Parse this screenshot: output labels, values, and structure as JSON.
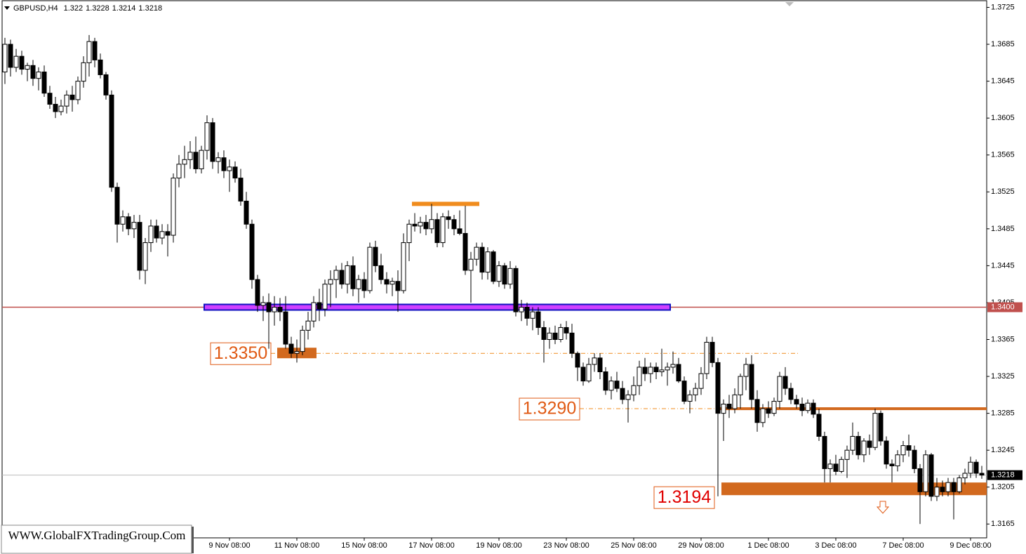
{
  "chart_data": {
    "type": "candlestick",
    "title": "GBPUSD,H4",
    "watermark": "WWW.GlobalFXTradingGroup.Com",
    "ylim": [
      1.315,
      1.3733
    ],
    "yticks": [
      1.3725,
      1.3685,
      1.3645,
      1.3605,
      1.3565,
      1.3525,
      1.3485,
      1.3445,
      1.3405,
      1.3365,
      1.3325,
      1.3285,
      1.3245,
      1.3205,
      1.3165
    ],
    "xticks": [
      {
        "value": 40,
        "label": "9 Nov 08:00"
      },
      {
        "value": 52,
        "label": "11 Nov 08:00"
      },
      {
        "value": 64,
        "label": "15 Nov 08:00"
      },
      {
        "value": 76,
        "label": "17 Nov 08:00"
      },
      {
        "value": 88,
        "label": "19 Nov 08:00"
      },
      {
        "value": 100,
        "label": "23 Nov 08:00"
      },
      {
        "value": 112,
        "label": "25 Nov 08:00"
      },
      {
        "value": 124,
        "label": "29 Nov 08:00"
      },
      {
        "value": 136,
        "label": "1 Dec 08:00"
      },
      {
        "value": 148,
        "label": "3 Dec 08:00"
      },
      {
        "value": 160,
        "label": "7 Dec 08:00"
      },
      {
        "value": 172,
        "label": "9 Dec 08:00"
      }
    ],
    "levels": {
      "resistance": {
        "value": 1.34,
        "label": "1.3400"
      },
      "level_1350": {
        "value": 1.335,
        "label": "1.3350"
      },
      "level_1290": {
        "value": 1.329,
        "label": "1.3290"
      },
      "level_1194": {
        "value": 1.3194,
        "label": "1.3194"
      },
      "top_marker": 1.3512
    },
    "ohlc": [
      [
        1.3655,
        1.3692,
        1.3642,
        1.3685
      ],
      [
        1.3685,
        1.369,
        1.365,
        1.366
      ],
      [
        1.366,
        1.368,
        1.3655,
        1.3672
      ],
      [
        1.3672,
        1.3678,
        1.3652,
        1.3658
      ],
      [
        1.3658,
        1.3665,
        1.3645,
        1.3662
      ],
      [
        1.3662,
        1.3668,
        1.364,
        1.3648
      ],
      [
        1.3648,
        1.366,
        1.3635,
        1.3655
      ],
      [
        1.3655,
        1.3662,
        1.3628,
        1.3632
      ],
      [
        1.3632,
        1.364,
        1.3615,
        1.362
      ],
      [
        1.362,
        1.3628,
        1.3605,
        1.3612
      ],
      [
        1.3612,
        1.3625,
        1.3608,
        1.3618
      ],
      [
        1.3618,
        1.3635,
        1.361,
        1.363
      ],
      [
        1.363,
        1.364,
        1.3612,
        1.3625
      ],
      [
        1.3625,
        1.365,
        1.362,
        1.3645
      ],
      [
        1.3645,
        1.3672,
        1.3638,
        1.3665
      ],
      [
        1.3665,
        1.3695,
        1.365,
        1.3688
      ],
      [
        1.3688,
        1.3692,
        1.366,
        1.3668
      ],
      [
        1.3668,
        1.3675,
        1.3648,
        1.3652
      ],
      [
        1.3652,
        1.3655,
        1.3625,
        1.363
      ],
      [
        1.363,
        1.3635,
        1.3525,
        1.353
      ],
      [
        1.353,
        1.3535,
        1.347,
        1.349
      ],
      [
        1.349,
        1.3505,
        1.3482,
        1.3498
      ],
      [
        1.3498,
        1.3502,
        1.3478,
        1.3485
      ],
      [
        1.3485,
        1.35,
        1.3475,
        1.3492
      ],
      [
        1.3492,
        1.35,
        1.343,
        1.344
      ],
      [
        1.344,
        1.3475,
        1.3425,
        1.347
      ],
      [
        1.347,
        1.3495,
        1.346,
        1.3488
      ],
      [
        1.3488,
        1.3495,
        1.347,
        1.3475
      ],
      [
        1.3475,
        1.349,
        1.3468,
        1.3482
      ],
      [
        1.3482,
        1.349,
        1.3455,
        1.3478
      ],
      [
        1.3478,
        1.3545,
        1.347,
        1.354
      ],
      [
        1.354,
        1.3565,
        1.353,
        1.3555
      ],
      [
        1.3555,
        1.3575,
        1.354,
        1.356
      ],
      [
        1.356,
        1.358,
        1.355,
        1.3568
      ],
      [
        1.3568,
        1.3585,
        1.3545,
        1.355
      ],
      [
        1.355,
        1.3575,
        1.3545,
        1.357
      ],
      [
        1.357,
        1.3608,
        1.356,
        1.36
      ],
      [
        1.36,
        1.3605,
        1.355,
        1.3558
      ],
      [
        1.3558,
        1.3568,
        1.3545,
        1.3562
      ],
      [
        1.3562,
        1.357,
        1.354,
        1.3548
      ],
      [
        1.3548,
        1.356,
        1.3525,
        1.3552
      ],
      [
        1.3552,
        1.3558,
        1.3535,
        1.354
      ],
      [
        1.354,
        1.355,
        1.351,
        1.3515
      ],
      [
        1.3515,
        1.3525,
        1.3485,
        1.349
      ],
      [
        1.349,
        1.3495,
        1.342,
        1.343
      ],
      [
        1.343,
        1.3435,
        1.3395,
        1.3402
      ],
      [
        1.3402,
        1.3412,
        1.3385,
        1.3405
      ],
      [
        1.3405,
        1.3415,
        1.3355,
        1.3395
      ],
      [
        1.3395,
        1.3412,
        1.338,
        1.34
      ],
      [
        1.34,
        1.341,
        1.3385,
        1.3395
      ],
      [
        1.3395,
        1.3412,
        1.3355,
        1.336
      ],
      [
        1.336,
        1.3368,
        1.3345,
        1.335
      ],
      [
        1.335,
        1.3365,
        1.334,
        1.3352
      ],
      [
        1.3352,
        1.338,
        1.3348,
        1.3375
      ],
      [
        1.3375,
        1.3395,
        1.3365,
        1.3385
      ],
      [
        1.3385,
        1.3412,
        1.3378,
        1.3405
      ],
      [
        1.3405,
        1.342,
        1.3385,
        1.3398
      ],
      [
        1.3398,
        1.343,
        1.339,
        1.3425
      ],
      [
        1.3425,
        1.344,
        1.34,
        1.343
      ],
      [
        1.343,
        1.3445,
        1.341,
        1.344
      ],
      [
        1.344,
        1.3448,
        1.342,
        1.3425
      ],
      [
        1.3425,
        1.345,
        1.3415,
        1.3445
      ],
      [
        1.3445,
        1.3455,
        1.3412,
        1.342
      ],
      [
        1.342,
        1.3435,
        1.3405,
        1.343
      ],
      [
        1.343,
        1.3438,
        1.341,
        1.3418
      ],
      [
        1.3418,
        1.347,
        1.3415,
        1.3465
      ],
      [
        1.3465,
        1.3472,
        1.3438,
        1.3445
      ],
      [
        1.3445,
        1.3458,
        1.3425,
        1.343
      ],
      [
        1.343,
        1.3438,
        1.3415,
        1.3425
      ],
      [
        1.3425,
        1.3432,
        1.3412,
        1.3428
      ],
      [
        1.3428,
        1.344,
        1.3395,
        1.3418
      ],
      [
        1.3418,
        1.348,
        1.3415,
        1.347
      ],
      [
        1.347,
        1.3495,
        1.345,
        1.349
      ],
      [
        1.349,
        1.3502,
        1.3482,
        1.3488
      ],
      [
        1.3488,
        1.3498,
        1.348,
        1.3492
      ],
      [
        1.3492,
        1.35,
        1.3478,
        1.3485
      ],
      [
        1.3485,
        1.3512,
        1.348,
        1.3495
      ],
      [
        1.3495,
        1.3502,
        1.3465,
        1.347
      ],
      [
        1.347,
        1.3502,
        1.3465,
        1.3498
      ],
      [
        1.3498,
        1.3505,
        1.3485,
        1.3495
      ],
      [
        1.3495,
        1.35,
        1.3478,
        1.3485
      ],
      [
        1.3485,
        1.3505,
        1.3478,
        1.348
      ],
      [
        1.348,
        1.351,
        1.3435,
        1.344
      ],
      [
        1.344,
        1.346,
        1.3405,
        1.3452
      ],
      [
        1.3452,
        1.347,
        1.3445,
        1.3465
      ],
      [
        1.3465,
        1.347,
        1.343,
        1.3438
      ],
      [
        1.3438,
        1.3465,
        1.343,
        1.346
      ],
      [
        1.346,
        1.3462,
        1.3425,
        1.3428
      ],
      [
        1.3428,
        1.345,
        1.3422,
        1.3445
      ],
      [
        1.3445,
        1.3448,
        1.342,
        1.3425
      ],
      [
        1.3425,
        1.345,
        1.342,
        1.3442
      ],
      [
        1.3442,
        1.3445,
        1.339,
        1.3395
      ],
      [
        1.3395,
        1.3408,
        1.3385,
        1.34
      ],
      [
        1.34,
        1.3405,
        1.338,
        1.3388
      ],
      [
        1.3388,
        1.34,
        1.3375,
        1.3395
      ],
      [
        1.3395,
        1.34,
        1.337,
        1.3378
      ],
      [
        1.3378,
        1.3385,
        1.334,
        1.3365
      ],
      [
        1.3365,
        1.3378,
        1.3355,
        1.3372
      ],
      [
        1.3372,
        1.338,
        1.336,
        1.3365
      ],
      [
        1.3365,
        1.3382,
        1.3362,
        1.3378
      ],
      [
        1.3378,
        1.3385,
        1.3365,
        1.3372
      ],
      [
        1.3372,
        1.3382,
        1.3345,
        1.335
      ],
      [
        1.335,
        1.3352,
        1.332,
        1.3335
      ],
      [
        1.3335,
        1.334,
        1.3315,
        1.332
      ],
      [
        1.332,
        1.3345,
        1.3318,
        1.3338
      ],
      [
        1.3338,
        1.335,
        1.333,
        1.3345
      ],
      [
        1.3345,
        1.335,
        1.3322,
        1.333
      ],
      [
        1.333,
        1.3335,
        1.3305,
        1.331
      ],
      [
        1.331,
        1.3325,
        1.33,
        1.332
      ],
      [
        1.332,
        1.333,
        1.3308,
        1.3312
      ],
      [
        1.3312,
        1.332,
        1.3295,
        1.33
      ],
      [
        1.33,
        1.331,
        1.3275,
        1.3305
      ],
      [
        1.3305,
        1.3325,
        1.3298,
        1.3315
      ],
      [
        1.3315,
        1.3342,
        1.3305,
        1.3335
      ],
      [
        1.3335,
        1.3345,
        1.332,
        1.3328
      ],
      [
        1.3328,
        1.334,
        1.3318,
        1.3335
      ],
      [
        1.3335,
        1.334,
        1.3322,
        1.333
      ],
      [
        1.333,
        1.3355,
        1.3325,
        1.3332
      ],
      [
        1.3332,
        1.334,
        1.3315,
        1.3335
      ],
      [
        1.3335,
        1.3352,
        1.3328,
        1.3338
      ],
      [
        1.3338,
        1.3345,
        1.3318,
        1.332
      ],
      [
        1.332,
        1.3325,
        1.3295,
        1.3298
      ],
      [
        1.3298,
        1.331,
        1.3285,
        1.3305
      ],
      [
        1.3305,
        1.3318,
        1.3298,
        1.3312
      ],
      [
        1.3312,
        1.3335,
        1.3305,
        1.3328
      ],
      [
        1.3328,
        1.3368,
        1.3322,
        1.3362
      ],
      [
        1.3362,
        1.3368,
        1.3335,
        1.334
      ],
      [
        1.334,
        1.3345,
        1.3195,
        1.3285
      ],
      [
        1.3285,
        1.33,
        1.3255,
        1.3295
      ],
      [
        1.3295,
        1.3305,
        1.328,
        1.329
      ],
      [
        1.329,
        1.3312,
        1.3285,
        1.3305
      ],
      [
        1.3305,
        1.3328,
        1.329,
        1.3325
      ],
      [
        1.3325,
        1.3345,
        1.331,
        1.3338
      ],
      [
        1.3338,
        1.3348,
        1.329,
        1.33
      ],
      [
        1.33,
        1.331,
        1.3265,
        1.3275
      ],
      [
        1.3275,
        1.3295,
        1.327,
        1.329
      ],
      [
        1.329,
        1.3298,
        1.328,
        1.3285
      ],
      [
        1.3285,
        1.3302,
        1.3282,
        1.3298
      ],
      [
        1.3298,
        1.333,
        1.329,
        1.3325
      ],
      [
        1.3325,
        1.3335,
        1.3305,
        1.3312
      ],
      [
        1.3312,
        1.3318,
        1.3295,
        1.33
      ],
      [
        1.33,
        1.3305,
        1.329,
        1.3295
      ],
      [
        1.3295,
        1.3302,
        1.3282,
        1.3288
      ],
      [
        1.3288,
        1.33,
        1.3285,
        1.3296
      ],
      [
        1.3296,
        1.33,
        1.328,
        1.3284
      ],
      [
        1.3284,
        1.329,
        1.3255,
        1.326
      ],
      [
        1.326,
        1.3265,
        1.321,
        1.3225
      ],
      [
        1.3225,
        1.3235,
        1.321,
        1.323
      ],
      [
        1.323,
        1.324,
        1.3218,
        1.3222
      ],
      [
        1.3222,
        1.3238,
        1.322,
        1.3235
      ],
      [
        1.3235,
        1.325,
        1.3215,
        1.3245
      ],
      [
        1.3245,
        1.3275,
        1.324,
        1.326
      ],
      [
        1.326,
        1.3265,
        1.3235,
        1.324
      ],
      [
        1.324,
        1.3258,
        1.3232,
        1.3255
      ],
      [
        1.3255,
        1.3262,
        1.324,
        1.3248
      ],
      [
        1.3248,
        1.329,
        1.3245,
        1.3285
      ],
      [
        1.3285,
        1.3288,
        1.325,
        1.3255
      ],
      [
        1.3255,
        1.326,
        1.3225,
        1.323
      ],
      [
        1.323,
        1.3235,
        1.321,
        1.3228
      ],
      [
        1.3228,
        1.3245,
        1.3222,
        1.324
      ],
      [
        1.324,
        1.3255,
        1.3232,
        1.325
      ],
      [
        1.325,
        1.3262,
        1.3238,
        1.3245
      ],
      [
        1.3245,
        1.325,
        1.322,
        1.3225
      ],
      [
        1.3225,
        1.323,
        1.3165,
        1.32
      ],
      [
        1.32,
        1.3245,
        1.3195,
        1.324
      ],
      [
        1.324,
        1.3242,
        1.319,
        1.3195
      ],
      [
        1.3195,
        1.3215,
        1.319,
        1.3205
      ],
      [
        1.3205,
        1.3212,
        1.3195,
        1.32
      ],
      [
        1.32,
        1.3215,
        1.3195,
        1.321
      ],
      [
        1.321,
        1.3215,
        1.317,
        1.32
      ],
      [
        1.32,
        1.3218,
        1.3198,
        1.3215
      ],
      [
        1.3215,
        1.3225,
        1.3208,
        1.322
      ],
      [
        1.322,
        1.3238,
        1.3215,
        1.3232
      ],
      [
        1.3232,
        1.3235,
        1.3215,
        1.322
      ],
      [
        1.322,
        1.3228,
        1.3214,
        1.3218
      ]
    ]
  }
}
